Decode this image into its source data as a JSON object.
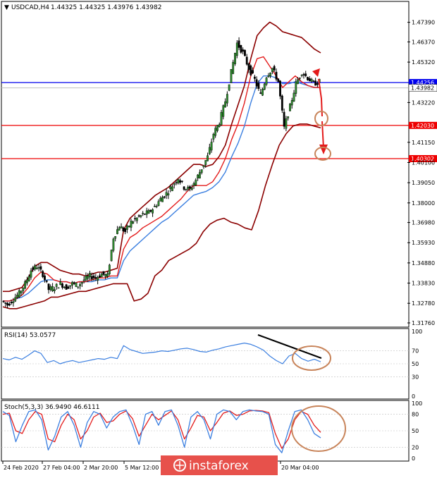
{
  "chart_data": [
    {
      "type": "line",
      "panel": "price",
      "header": {
        "symbol": "USDCAD,H4",
        "ohlc": "1.44325 1.44325 1.43976 1.43982"
      },
      "ylim": [
        1.3176,
        1.4789
      ],
      "y_ticks": [
        "1.47390",
        "1.46370",
        "1.45320",
        "1.44256",
        "1.43982",
        "1.43220",
        "1.42030",
        "1.41150",
        "1.40302",
        "1.40100",
        "1.39050",
        "1.38000",
        "1.36980",
        "1.35930",
        "1.34880",
        "1.33830",
        "1.32780",
        "1.31760"
      ],
      "levels": [
        {
          "value": 1.44256,
          "label": "1.44256",
          "color": "#0000ee"
        },
        {
          "value": 1.43982,
          "label": "1.43982",
          "color": "#c0c0c0"
        },
        {
          "value": 1.4203,
          "label": "1.42030",
          "color": "#ee0000"
        },
        {
          "value": 1.40302,
          "label": "1.40302",
          "color": "#ee0000"
        }
      ],
      "x_labels": [
        "24 Feb 2020",
        "27 Feb 04:00",
        "2 Mar 20:00",
        "5 Mar 12:00",
        "20 Mar 04:00"
      ],
      "price_path": [
        1.329,
        1.327,
        1.33,
        1.333,
        1.338,
        1.345,
        1.347,
        1.343,
        1.335,
        1.336,
        1.338,
        1.336,
        1.338,
        1.337,
        1.34,
        1.342,
        1.341,
        1.343,
        1.342,
        1.362,
        1.368,
        1.365,
        1.37,
        1.372,
        1.374,
        1.375,
        1.378,
        1.382,
        1.385,
        1.389,
        1.393,
        1.388,
        1.387,
        1.392,
        1.398,
        1.404,
        1.416,
        1.422,
        1.433,
        1.448,
        1.463,
        1.458,
        1.45,
        1.444,
        1.436,
        1.446,
        1.45,
        1.443,
        1.419,
        1.43,
        1.442,
        1.448,
        1.445,
        1.442,
        1.443
      ],
      "bb_upper": [
        1.334,
        1.334,
        1.335,
        1.336,
        1.341,
        1.347,
        1.349,
        1.349,
        1.347,
        1.345,
        1.344,
        1.343,
        1.343,
        1.342,
        1.343,
        1.344,
        1.344,
        1.345,
        1.346,
        1.366,
        1.372,
        1.375,
        1.378,
        1.381,
        1.384,
        1.386,
        1.388,
        1.391,
        1.394,
        1.397,
        1.4,
        1.4,
        1.399,
        1.4,
        1.404,
        1.41,
        1.421,
        1.431,
        1.441,
        1.455,
        1.467,
        1.471,
        1.474,
        1.472,
        1.469,
        1.468,
        1.467,
        1.466,
        1.463,
        1.46,
        1.458
      ],
      "bb_lower": [
        1.326,
        1.325,
        1.325,
        1.326,
        1.327,
        1.328,
        1.329,
        1.331,
        1.331,
        1.332,
        1.333,
        1.334,
        1.334,
        1.335,
        1.336,
        1.337,
        1.338,
        1.338,
        1.338,
        1.329,
        1.33,
        1.333,
        1.342,
        1.345,
        1.35,
        1.352,
        1.354,
        1.356,
        1.359,
        1.365,
        1.369,
        1.371,
        1.372,
        1.37,
        1.369,
        1.367,
        1.366,
        1.376,
        1.389,
        1.4,
        1.41,
        1.416,
        1.42,
        1.421,
        1.421,
        1.42,
        1.419
      ],
      "ma_fast": [
        1.329,
        1.329,
        1.33,
        1.332,
        1.336,
        1.341,
        1.344,
        1.343,
        1.34,
        1.339,
        1.339,
        1.338,
        1.339,
        1.339,
        1.34,
        1.341,
        1.341,
        1.342,
        1.342,
        1.356,
        1.362,
        1.364,
        1.367,
        1.369,
        1.371,
        1.373,
        1.376,
        1.379,
        1.382,
        1.386,
        1.389,
        1.389,
        1.389,
        1.391,
        1.396,
        1.403,
        1.413,
        1.421,
        1.432,
        1.446,
        1.455,
        1.456,
        1.451,
        1.446,
        1.44,
        1.443,
        1.446,
        1.443,
        1.441,
        1.44,
        1.44
      ],
      "ma_slow": [
        1.329,
        1.329,
        1.33,
        1.331,
        1.333,
        1.336,
        1.339,
        1.34,
        1.34,
        1.339,
        1.339,
        1.338,
        1.339,
        1.339,
        1.339,
        1.34,
        1.34,
        1.341,
        1.341,
        1.35,
        1.355,
        1.358,
        1.361,
        1.364,
        1.367,
        1.37,
        1.372,
        1.375,
        1.378,
        1.381,
        1.384,
        1.385,
        1.386,
        1.388,
        1.391,
        1.396,
        1.404,
        1.411,
        1.42,
        1.432,
        1.442,
        1.446,
        1.446,
        1.445,
        1.442,
        1.442,
        1.443,
        1.442,
        1.441,
        1.44,
        1.44
      ]
    },
    {
      "type": "line",
      "panel": "rsi",
      "label": "RSI(14) 53.0577",
      "ylim": [
        0,
        100
      ],
      "y_ticks": [
        "100",
        "70",
        "50",
        "30",
        "0"
      ],
      "values": [
        58,
        56,
        60,
        57,
        63,
        70,
        66,
        52,
        55,
        50,
        53,
        55,
        52,
        54,
        56,
        58,
        57,
        60,
        58,
        78,
        72,
        69,
        66,
        67,
        68,
        70,
        69,
        71,
        73,
        74,
        72,
        69,
        68,
        71,
        73,
        76,
        78,
        80,
        82,
        80,
        76,
        71,
        62,
        55,
        50,
        62,
        66,
        58,
        54,
        57,
        53
      ]
    },
    {
      "type": "line",
      "panel": "stoch",
      "label": "Stoch(5,3,3) 36.9490 46.6111",
      "ylim": [
        0,
        100
      ],
      "y_ticks": [
        "100",
        "80",
        "50",
        "20",
        "0"
      ],
      "main": [
        85,
        78,
        30,
        60,
        85,
        88,
        70,
        15,
        40,
        75,
        85,
        60,
        20,
        65,
        85,
        80,
        55,
        75,
        85,
        88,
        60,
        25,
        80,
        85,
        60,
        85,
        88,
        60,
        20,
        75,
        85,
        70,
        35,
        80,
        88,
        85,
        70,
        85,
        88,
        86,
        85,
        80,
        25,
        10,
        50,
        85,
        88,
        70,
        45,
        37
      ],
      "signal": [
        80,
        82,
        50,
        45,
        70,
        85,
        80,
        35,
        30,
        60,
        80,
        70,
        35,
        50,
        75,
        82,
        65,
        68,
        80,
        86,
        72,
        40,
        60,
        80,
        70,
        78,
        86,
        70,
        35,
        55,
        78,
        75,
        50,
        65,
        82,
        86,
        78,
        80,
        86,
        87,
        86,
        83,
        45,
        18,
        35,
        70,
        85,
        80,
        60,
        47
      ]
    }
  ],
  "watermark": "instaforex"
}
